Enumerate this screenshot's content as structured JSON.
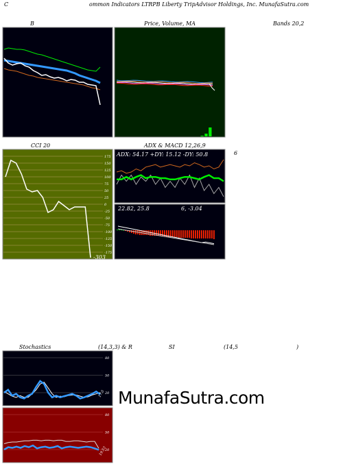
{
  "header": {
    "c_letter": "C",
    "title": "ommon  Indicators LTRPB Liberty TripAdvisor Holdings, Inc. MunafaSutra.com"
  },
  "labels": {
    "b": "B",
    "price_ma": "Price,  Volume, MA",
    "bands": "Bands 20,2",
    "cci": "CCI 20",
    "adx_macd": "ADX  & MACD 12,26,9",
    "six": "6",
    "stoch_left": "Stochastics",
    "stoch_params": "(14,3,3) & R",
    "si": "SI",
    "rsi_params": "(14,5",
    "close_paren": ")"
  },
  "watermark": "MunafaSutra.com",
  "colors": {
    "bollinger_bg": "#000010",
    "price_bg": "#002200",
    "cci_bg": "#556b00",
    "adx_bg": "#000010",
    "stoch_bg": "#000010",
    "rsi_bg": "#880000",
    "white": "#ffffff",
    "blue": "#3399ff",
    "green": "#00ee00",
    "orange": "#d2691e",
    "red": "#ff2200"
  },
  "chart_data": [
    {
      "type": "line",
      "name": "bollinger-bands",
      "series": [
        {
          "values": [
            72,
            70,
            71,
            72,
            72,
            73,
            75,
            77,
            79,
            80,
            82,
            84,
            86,
            88,
            90,
            92,
            94,
            96,
            98,
            100,
            102,
            103,
            104,
            98
          ]
        },
        {
          "values": [
            88,
            89,
            90,
            91,
            92,
            93,
            94,
            95,
            96,
            97,
            98,
            99,
            100,
            101,
            102,
            103,
            105,
            107,
            110,
            112,
            114,
            116,
            118,
            121
          ]
        },
        {
          "values": [
            100,
            102,
            103,
            104,
            106,
            108,
            110,
            111,
            113,
            114,
            115,
            116,
            117,
            118,
            119,
            120,
            121,
            122,
            123,
            124,
            126,
            128,
            129,
            131
          ]
        },
        {
          "values": [
            85,
            92,
            95,
            93,
            92,
            96,
            98,
            103,
            106,
            110,
            109,
            112,
            114,
            113,
            115,
            118,
            116,
            117,
            120,
            120,
            123,
            124,
            125,
            153
          ]
        }
      ]
    },
    {
      "type": "bar",
      "name": "price-volume",
      "values": [
        0,
        0,
        0,
        0,
        0,
        0,
        0,
        0,
        0,
        0,
        0,
        0,
        0,
        0,
        0,
        0,
        0,
        0,
        0,
        0,
        0,
        1,
        4,
        13
      ]
    },
    {
      "type": "line",
      "name": "cci",
      "ytick_labels": [
        "175",
        "150",
        "125",
        "100",
        "75",
        "50",
        "25",
        "0",
        "-25",
        "-50",
        "-75",
        "-100",
        "-125",
        "-150",
        "-175"
      ],
      "values": [
        100,
        160,
        150,
        110,
        55,
        45,
        50,
        25,
        -30,
        -20,
        10,
        -5,
        -20,
        -10,
        -10,
        -10,
        -303
      ],
      "value_label": "-303"
    },
    {
      "type": "line",
      "name": "adx",
      "readout": "ADX: 54.17  +DY: 15.12  -DY: 50.8",
      "series": [
        {
          "values": [
            48,
            48,
            52,
            48,
            52,
            55,
            50,
            52,
            52,
            50,
            50,
            48,
            48,
            50,
            52,
            52,
            50,
            48,
            52,
            55,
            50,
            50,
            45
          ]
        },
        {
          "values": [
            40,
            55,
            45,
            55,
            40,
            52,
            45,
            55,
            40,
            50,
            35,
            45,
            35,
            50,
            40,
            55,
            35,
            50,
            30,
            40,
            25,
            35,
            20
          ]
        },
        {
          "values": [
            60,
            62,
            58,
            60,
            65,
            62,
            68,
            70,
            72,
            68,
            70,
            72,
            70,
            68,
            72,
            70,
            75,
            72,
            68,
            70,
            65,
            68,
            80
          ]
        }
      ]
    },
    {
      "type": "bar",
      "name": "macd",
      "readout_left": "22.82,  25.8",
      "readout_right": "6,  -3.04",
      "values": [
        1,
        1,
        1,
        0,
        -1,
        -2,
        -3,
        -4,
        -5,
        -6,
        -6,
        -7,
        -7,
        -7,
        -7,
        -7,
        -8,
        -8,
        -8,
        -8,
        -8,
        -8,
        -9,
        -9,
        -10,
        -10,
        -10,
        -10,
        -10,
        -10,
        -11,
        -11,
        -11,
        -11,
        -11,
        -11,
        -12,
        -12,
        -12,
        -12,
        -12,
        -12,
        -12,
        -12,
        -12,
        -12,
        -12,
        -13
      ]
    },
    {
      "type": "line",
      "name": "stochastics",
      "ytick_labels": [
        "80",
        "50",
        "20"
      ],
      "value_label": "17.5",
      "series": [
        {
          "values": [
            20,
            25,
            15,
            18,
            12,
            10,
            15,
            18,
            30,
            40,
            35,
            20,
            12,
            15,
            12,
            14,
            16,
            18,
            15,
            10,
            12,
            15,
            18,
            22,
            17
          ]
        },
        {
          "values": [
            22,
            18,
            14,
            12,
            15,
            12,
            12,
            18,
            25,
            35,
            38,
            28,
            18,
            12,
            14,
            13,
            15,
            16,
            16,
            14,
            12,
            13,
            16,
            18,
            20
          ]
        }
      ]
    },
    {
      "type": "line",
      "name": "rsi",
      "ytick_labels": [
        "80",
        "50",
        "20"
      ],
      "value_label": "19.53",
      "series": [
        {
          "values": [
            30,
            32,
            33,
            33,
            34,
            35,
            35,
            36,
            36,
            35,
            36,
            36,
            35,
            36,
            36,
            34,
            34,
            35,
            35,
            34,
            33,
            34,
            34,
            22
          ]
        },
        {
          "values": [
            20,
            24,
            23,
            25,
            23,
            26,
            24,
            27,
            22,
            24,
            25,
            23,
            24,
            26,
            22,
            24,
            25,
            24,
            23,
            24,
            25,
            24,
            22,
            19.5
          ]
        }
      ]
    }
  ]
}
